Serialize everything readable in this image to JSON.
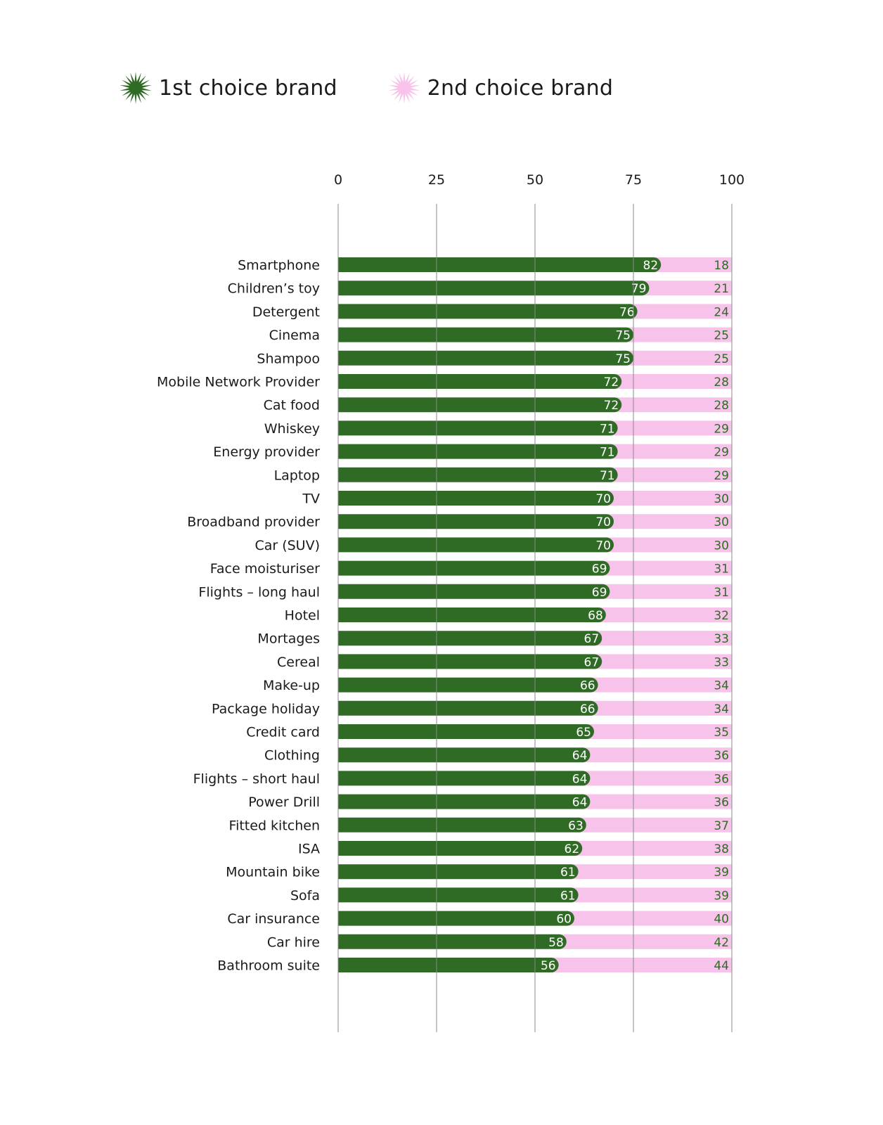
{
  "legend": {
    "first": {
      "label": "1st choice brand",
      "icon": "green-starburst-icon",
      "color": "#2f6b25"
    },
    "second": {
      "label": "2nd choice brand",
      "icon": "pink-starburst-icon",
      "color": "#f7c3ea"
    }
  },
  "chart_data": {
    "type": "bar",
    "orientation": "horizontal",
    "stacked": true,
    "xlim": [
      0,
      100
    ],
    "xticks": [
      "0",
      "25",
      "50",
      "75",
      "100"
    ],
    "grid": true,
    "legend_position": "top-left",
    "categories": [
      "Smartphone",
      "Children’s toy",
      "Detergent",
      "Cinema",
      "Shampoo",
      "Mobile Network Provider",
      "Cat food",
      "Whiskey",
      "Energy provider",
      "Laptop",
      "TV",
      "Broadband provider",
      "Car (SUV)",
      "Face moisturiser",
      "Flights – long haul",
      "Hotel",
      "Mortages",
      "Cereal",
      "Make-up",
      "Package holiday",
      "Credit card",
      "Clothing",
      "Flights – short haul",
      "Power Drill",
      "Fitted kitchen",
      "ISA",
      "Mountain bike",
      "Sofa",
      "Car insurance",
      "Car hire",
      "Bathroom suite"
    ],
    "series": [
      {
        "name": "1st choice brand",
        "color": "#2f6b25",
        "values": [
          82,
          79,
          76,
          75,
          75,
          72,
          72,
          71,
          71,
          71,
          70,
          70,
          70,
          69,
          69,
          68,
          67,
          67,
          66,
          66,
          65,
          64,
          64,
          64,
          63,
          62,
          61,
          61,
          60,
          58,
          56
        ]
      },
      {
        "name": "2nd choice brand",
        "color": "#f7c3ea",
        "values": [
          18,
          21,
          24,
          25,
          25,
          28,
          28,
          29,
          29,
          29,
          30,
          30,
          30,
          31,
          31,
          32,
          33,
          33,
          34,
          34,
          35,
          36,
          36,
          36,
          37,
          38,
          39,
          39,
          40,
          42,
          44
        ]
      }
    ]
  }
}
